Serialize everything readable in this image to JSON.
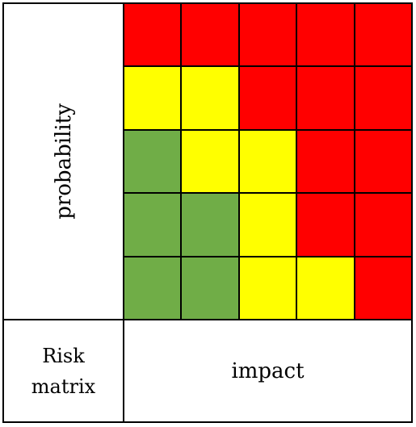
{
  "labels": {
    "probability": "probability",
    "impact": "impact",
    "corner_line1": "Risk",
    "corner_line2": "matrix"
  },
  "colors": {
    "R": "#ff0000",
    "Y": "#ffff00",
    "G": "#70ad47"
  },
  "matrix": [
    [
      "R",
      "R",
      "R",
      "R",
      "R"
    ],
    [
      "Y",
      "Y",
      "R",
      "R",
      "R"
    ],
    [
      "G",
      "Y",
      "Y",
      "R",
      "R"
    ],
    [
      "G",
      "G",
      "Y",
      "R",
      "R"
    ],
    [
      "G",
      "G",
      "Y",
      "Y",
      "R"
    ]
  ]
}
